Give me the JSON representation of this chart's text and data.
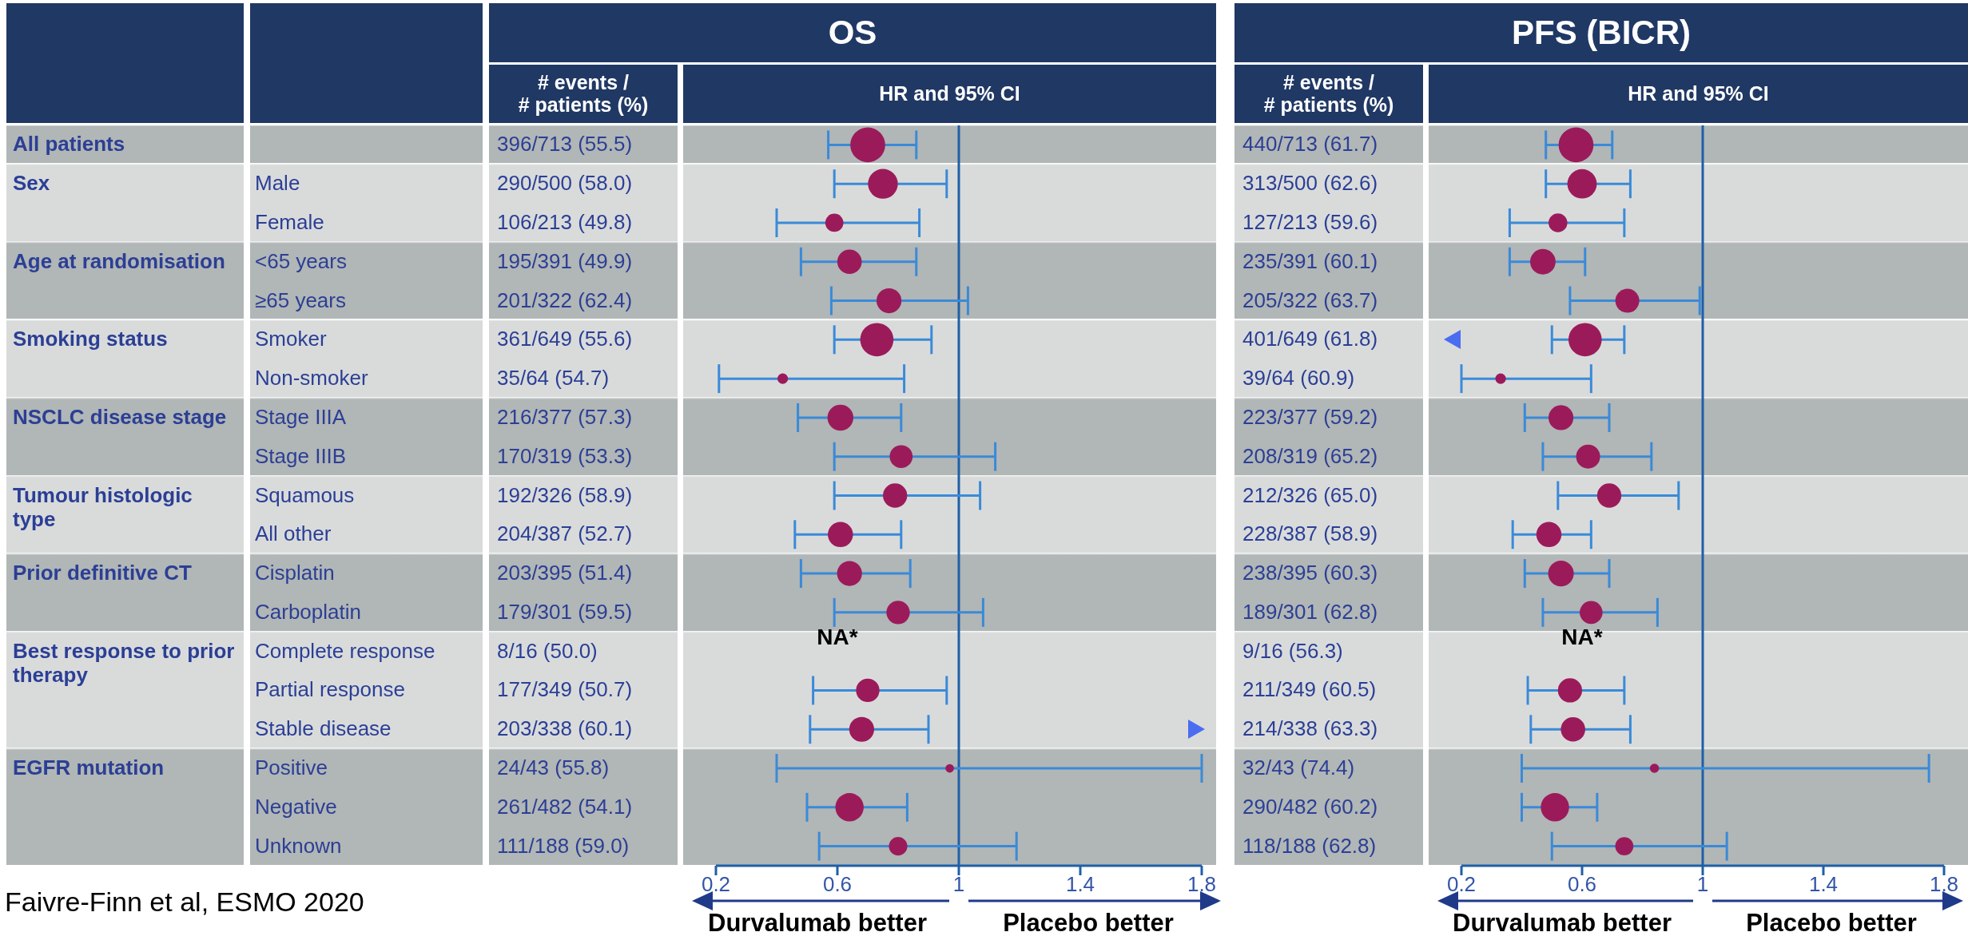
{
  "chart_data": [
    {
      "type": "other",
      "categories": [
        null,
        "Male",
        "Female",
        "<65 years",
        "≥65 years",
        "Smoker",
        "Non-smoker",
        "Stage IIIA",
        "Stage IIIB",
        "Squamous",
        "All other",
        "Cisplatin",
        "Carboplatin",
        "Complete response",
        "Partial response",
        "Stable disease",
        "Positive",
        "Negative",
        "Unknown"
      ],
      "y2_categories": [
        "All patients",
        "Sex",
        null,
        "Age at randomisation",
        null,
        "Smoking status",
        null,
        "NSCLC disease stage",
        null,
        "Tumour histologic type",
        null,
        "Prior definitive CT",
        null,
        "Best response to prior therapy",
        null,
        null,
        "EGFR mutation",
        null,
        null
      ],
      "annotations": [
        "Faivre-Finn et al, ESMO 2020"
      ]
    },
    {
      "type": "bubble",
      "orientation": "horizontal",
      "title": "OS",
      "subtitle": "HR and 95% CI",
      "ylabel": "# events / # patients (%)",
      "color": "#9b1b5a",
      "categories": [
        "396/713 (55.5)",
        "290/500 (58.0)",
        "106/213 (49.8)",
        "195/391 (49.9)",
        "201/322 (62.4)",
        "361/649 (55.6)",
        "35/64 (54.7)",
        "216/377 (57.3)",
        "170/319 (53.3)",
        "192/326 (58.9)",
        "204/387 (52.7)",
        "203/395 (51.4)",
        "179/301 (59.5)",
        "8/16 (50.0)",
        "177/349 (50.7)",
        "203/338 (60.1)",
        "24/43 (55.8)",
        "261/482 (54.1)",
        "111/188 (59.0)"
      ],
      "values": [
        0.7,
        0.75,
        0.59,
        0.64,
        0.77,
        0.73,
        0.42,
        0.61,
        0.81,
        0.79,
        0.61,
        0.64,
        0.8,
        null,
        0.7,
        0.68,
        0.97,
        0.64,
        0.8
      ],
      "value_labels": [
        null,
        null,
        null,
        null,
        null,
        null,
        null,
        null,
        null,
        null,
        null,
        null,
        null,
        "NA*",
        null,
        null,
        null,
        null,
        null
      ],
      "errors": [
        [
          0.57,
          0.86
        ],
        [
          0.59,
          0.96
        ],
        [
          0.4,
          0.87
        ],
        [
          0.48,
          0.86
        ],
        [
          0.58,
          1.03
        ],
        [
          0.59,
          0.91
        ],
        [
          0.21,
          0.82
        ],
        [
          0.47,
          0.81
        ],
        [
          0.59,
          1.12
        ],
        [
          0.59,
          1.07
        ],
        [
          0.46,
          0.81
        ],
        [
          0.48,
          0.84
        ],
        [
          0.59,
          1.08
        ],
        null,
        [
          0.52,
          0.96
        ],
        [
          0.51,
          0.9
        ],
        [
          0.4,
          1.8
        ],
        [
          0.5,
          0.83
        ],
        [
          0.54,
          1.19
        ]
      ],
      "sizes": [
        1,
        0.73,
        0.27,
        0.49,
        0.51,
        0.91,
        0.09,
        0.55,
        0.43,
        0.48,
        0.52,
        0.51,
        0.45,
        null,
        0.45,
        0.51,
        0.06,
        0.66,
        0.28
      ],
      "xlim": [
        0.2,
        1.8
      ],
      "xticks": [
        0.2,
        0.6,
        1,
        1.4,
        1.8
      ],
      "ref_lines": [
        {
          "axis": "x",
          "value": 1,
          "color": "#1f5fa8"
        }
      ],
      "annotations": [
        "Durvalumab better",
        "Placebo better"
      ]
    },
    {
      "type": "bubble",
      "orientation": "horizontal",
      "title": "PFS (BICR)",
      "subtitle": "HR and 95% CI",
      "ylabel": "# events / # patients (%)",
      "color": "#9b1b5a",
      "categories": [
        "440/713 (61.7)",
        "313/500 (62.6)",
        "127/213 (59.6)",
        "235/391 (60.1)",
        "205/322 (63.7)",
        "401/649 (61.8)",
        "39/64 (60.9)",
        "223/377 (59.2)",
        "208/319 (65.2)",
        "212/326 (65.0)",
        "228/387 (58.9)",
        "238/395 (60.3)",
        "189/301 (62.8)",
        "9/16 (56.3)",
        "211/349 (60.5)",
        "214/338 (63.3)",
        "32/43 (74.4)",
        "290/482 (60.2)",
        "118/188 (62.8)"
      ],
      "values": [
        0.58,
        0.6,
        0.52,
        0.47,
        0.75,
        0.61,
        0.33,
        0.53,
        0.62,
        0.69,
        0.49,
        0.53,
        0.63,
        null,
        0.56,
        0.57,
        0.84,
        0.51,
        0.74
      ],
      "value_labels": [
        null,
        null,
        null,
        null,
        null,
        null,
        null,
        null,
        null,
        null,
        null,
        null,
        null,
        "NA*",
        null,
        null,
        null,
        null,
        null
      ],
      "errors": [
        [
          0.48,
          0.7
        ],
        [
          0.48,
          0.76
        ],
        [
          0.36,
          0.74
        ],
        [
          0.36,
          0.61
        ],
        [
          0.56,
          0.99
        ],
        [
          0.5,
          0.74
        ],
        [
          0.2,
          0.63
        ],
        [
          0.41,
          0.69
        ],
        [
          0.47,
          0.83
        ],
        [
          0.52,
          0.92
        ],
        [
          0.37,
          0.63
        ],
        [
          0.41,
          0.69
        ],
        [
          0.47,
          0.85
        ],
        null,
        [
          0.42,
          0.74
        ],
        [
          0.43,
          0.76
        ],
        [
          0.4,
          1.75
        ],
        [
          0.4,
          0.65
        ],
        [
          0.5,
          1.08
        ]
      ],
      "sizes": [
        1,
        0.71,
        0.29,
        0.53,
        0.47,
        0.91,
        0.09,
        0.51,
        0.47,
        0.48,
        0.52,
        0.54,
        0.43,
        null,
        0.48,
        0.49,
        0.07,
        0.66,
        0.27
      ],
      "xlim": [
        0.2,
        1.8
      ],
      "xticks": [
        0.2,
        0.6,
        1,
        1.4,
        1.8
      ],
      "ref_lines": [
        {
          "axis": "x",
          "value": 1,
          "color": "#1f5fa8"
        }
      ],
      "annotations": [
        "Durvalumab better",
        "Placebo better"
      ]
    }
  ]
}
